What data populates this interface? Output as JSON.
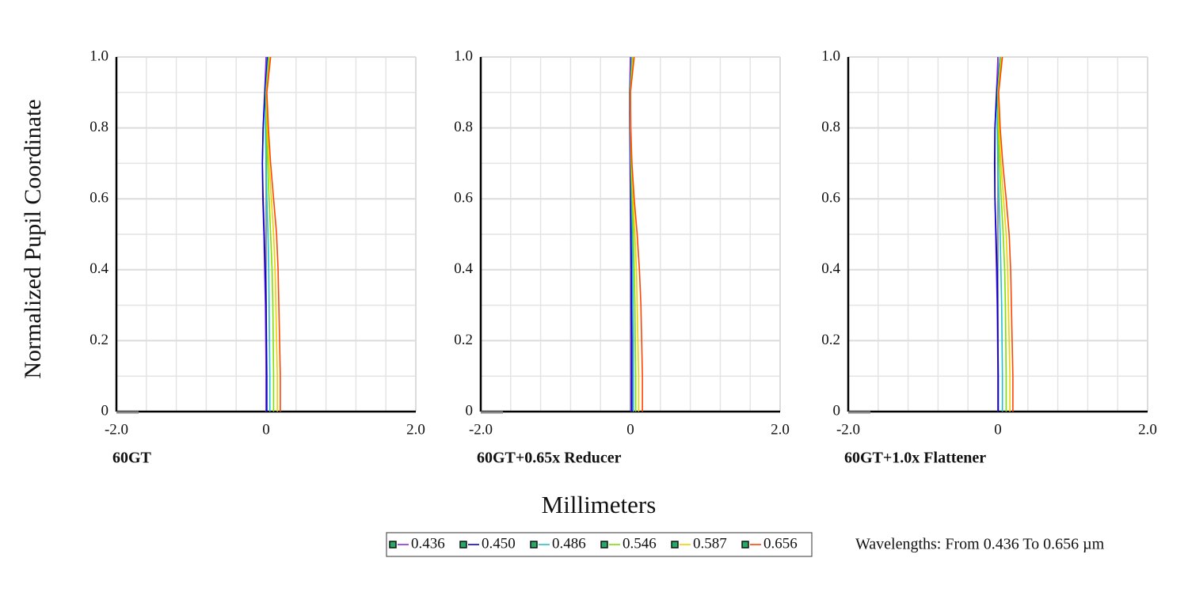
{
  "y_axis_label": "Normalized Pupil Coordinate",
  "x_axis_label": "Millimeters",
  "note": "Wavelengths: From 0.436 To 0.656 µm",
  "legend": [
    {
      "label": "0.436",
      "color": "#8a2be2"
    },
    {
      "label": "0.450",
      "color": "#0000cd"
    },
    {
      "label": "0.486",
      "color": "#20c0d0"
    },
    {
      "label": "0.546",
      "color": "#7fe000"
    },
    {
      "label": "0.587",
      "color": "#f0d000"
    },
    {
      "label": "0.656",
      "color": "#ff4500"
    }
  ],
  "chart_data": [
    {
      "type": "line",
      "title": "60GT",
      "xlim": [
        -2,
        2
      ],
      "xticks": [
        {
          "value": -2,
          "label": "-2.0"
        },
        0,
        {
          "value": 2,
          "label": "2.0"
        }
      ],
      "ylim": [
        0,
        1
      ],
      "yticks": [
        0,
        0.2,
        0.4,
        0.6,
        0.8,
        {
          "value": 1,
          "label": "1.0"
        }
      ],
      "grid": true,
      "y": [
        0,
        0.1,
        0.2,
        0.3,
        0.4,
        0.5,
        0.6,
        0.7,
        0.8,
        0.9,
        1.0
      ],
      "series": [
        {
          "values": [
            0,
            0,
            -0.005,
            -0.01,
            -0.02,
            -0.03,
            -0.045,
            -0.05,
            -0.04,
            -0.02,
            0
          ]
        },
        {
          "values": [
            0.01,
            0.01,
            0.005,
            0,
            -0.01,
            -0.025,
            -0.04,
            -0.05,
            -0.04,
            -0.015,
            0.02
          ]
        },
        {
          "values": [
            0.05,
            0.05,
            0.045,
            0.04,
            0.035,
            0.025,
            0.01,
            0,
            -0.01,
            -0.005,
            0.03
          ]
        },
        {
          "values": [
            0.1,
            0.1,
            0.095,
            0.09,
            0.08,
            0.06,
            0.04,
            0.02,
            0.005,
            0,
            0.04
          ]
        },
        {
          "values": [
            0.15,
            0.15,
            0.14,
            0.13,
            0.12,
            0.1,
            0.07,
            0.04,
            0.015,
            0.005,
            0.05
          ]
        },
        {
          "values": [
            0.19,
            0.19,
            0.18,
            0.17,
            0.16,
            0.14,
            0.1,
            0.06,
            0.03,
            0.01,
            0.06
          ]
        }
      ]
    },
    {
      "type": "line",
      "title": "60GT+0.65x Reducer",
      "xlim": [
        -2,
        2
      ],
      "xticks": [
        {
          "value": -2,
          "label": "-2.0"
        },
        0,
        {
          "value": 2,
          "label": "2.0"
        }
      ],
      "ylim": [
        0,
        1
      ],
      "yticks": [
        0,
        0.2,
        0.4,
        0.6,
        0.8,
        {
          "value": 1,
          "label": "1.0"
        }
      ],
      "grid": true,
      "y": [
        0,
        0.1,
        0.2,
        0.3,
        0.4,
        0.5,
        0.6,
        0.7,
        0.8,
        0.9,
        1.0
      ],
      "series": [
        {
          "values": [
            0.01,
            0.01,
            0.01,
            0.01,
            0.01,
            0.005,
            0,
            -0.005,
            -0.01,
            -0.01,
            0
          ]
        },
        {
          "values": [
            0.02,
            0.02,
            0.02,
            0.015,
            0.015,
            0.01,
            0.005,
            0,
            -0.005,
            -0.01,
            0.02
          ]
        },
        {
          "values": [
            0.04,
            0.04,
            0.04,
            0.035,
            0.03,
            0.025,
            0.015,
            0.005,
            0,
            -0.005,
            0.02
          ]
        },
        {
          "values": [
            0.07,
            0.07,
            0.065,
            0.06,
            0.05,
            0.04,
            0.025,
            0.01,
            0,
            -0.005,
            0.03
          ]
        },
        {
          "values": [
            0.11,
            0.11,
            0.1,
            0.09,
            0.08,
            0.06,
            0.035,
            0.015,
            0,
            0,
            0.04
          ]
        },
        {
          "values": [
            0.16,
            0.16,
            0.15,
            0.14,
            0.12,
            0.09,
            0.05,
            0.02,
            0.005,
            0,
            0.05
          ]
        }
      ]
    },
    {
      "type": "line",
      "title": "60GT+1.0x Flattener",
      "xlim": [
        -2,
        2
      ],
      "xticks": [
        {
          "value": -2,
          "label": "-2.0"
        },
        0,
        {
          "value": 2,
          "label": "2.0"
        }
      ],
      "ylim": [
        0,
        1
      ],
      "yticks": [
        0,
        0.2,
        0.4,
        0.6,
        0.8,
        {
          "value": 1,
          "label": "1.0"
        }
      ],
      "grid": true,
      "y": [
        0,
        0.1,
        0.2,
        0.3,
        0.4,
        0.5,
        0.6,
        0.7,
        0.8,
        0.9,
        1.0
      ],
      "series": [
        {
          "values": [
            0,
            0,
            -0.005,
            -0.01,
            -0.02,
            -0.03,
            -0.04,
            -0.04,
            -0.04,
            -0.02,
            0
          ]
        },
        {
          "values": [
            0.005,
            0.005,
            0,
            -0.005,
            -0.01,
            -0.025,
            -0.04,
            -0.045,
            -0.04,
            -0.015,
            0.03
          ]
        },
        {
          "values": [
            0.06,
            0.06,
            0.055,
            0.05,
            0.04,
            0.03,
            0.015,
            0,
            -0.01,
            -0.005,
            0.03
          ]
        },
        {
          "values": [
            0.11,
            0.11,
            0.105,
            0.1,
            0.09,
            0.07,
            0.045,
            0.02,
            0.005,
            0,
            0.04
          ]
        },
        {
          "values": [
            0.16,
            0.16,
            0.15,
            0.14,
            0.13,
            0.11,
            0.075,
            0.04,
            0.015,
            0.005,
            0.05
          ]
        },
        {
          "values": [
            0.2,
            0.2,
            0.19,
            0.18,
            0.17,
            0.15,
            0.11,
            0.065,
            0.03,
            0.01,
            0.06
          ]
        }
      ]
    }
  ]
}
